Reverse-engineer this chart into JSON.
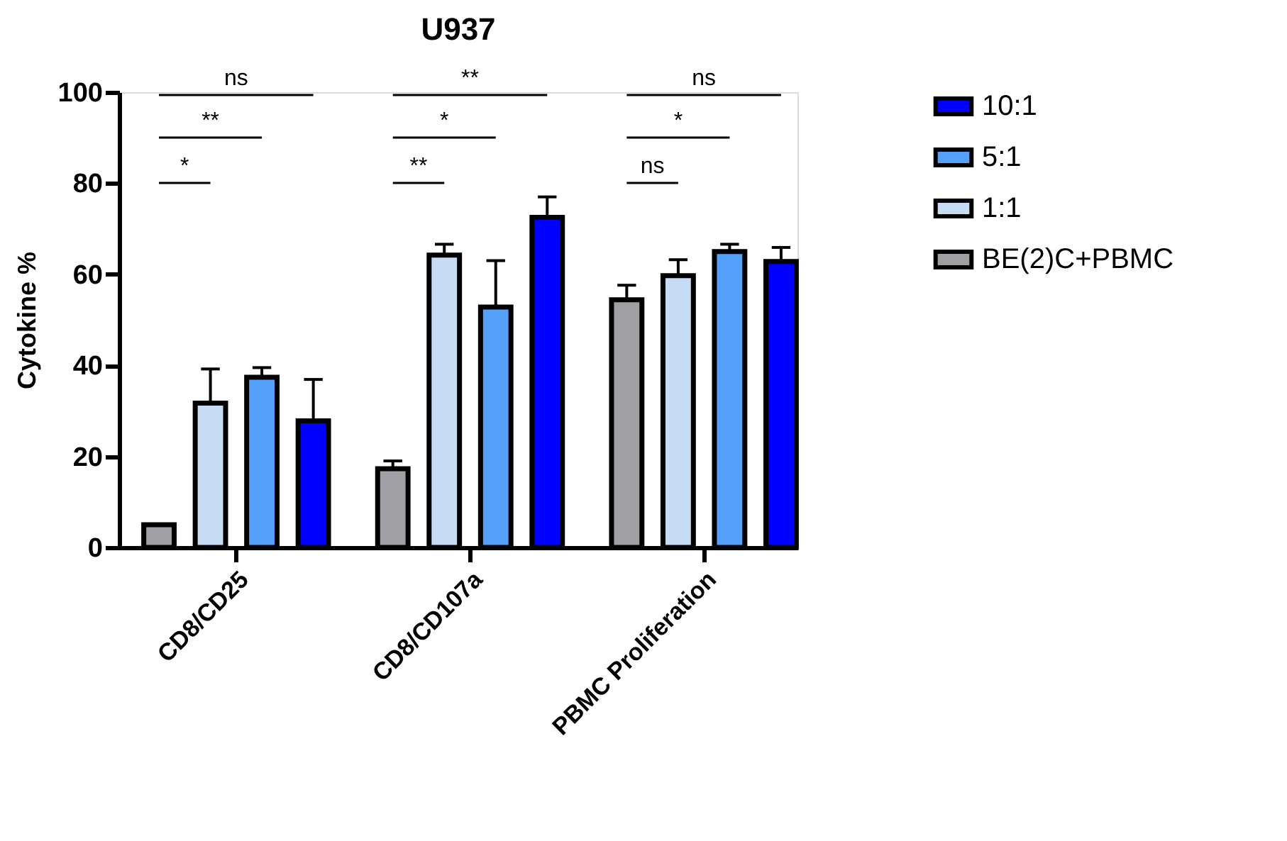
{
  "chart_data": {
    "type": "bar",
    "title": "U937",
    "ylabel": "Cytokine %",
    "categories": [
      "CD8/CD25",
      "CD8/CD107a",
      "PBMC Proliferation"
    ],
    "series": [
      {
        "name": "BE(2)C+PBMC",
        "color": "#a0a0a4",
        "values": [
          5,
          17.3,
          54.4
        ],
        "errors": [
          null,
          [
            17.3,
            19
          ],
          [
            54.4,
            57.6
          ]
        ]
      },
      {
        "name": "1:1",
        "color": "#c6dcf5",
        "values": [
          31.7,
          64.2,
          59.7
        ],
        "errors": [
          [
            31.7,
            39.2
          ],
          [
            64.2,
            66.6
          ],
          [
            59.7,
            63.2
          ]
        ]
      },
      {
        "name": "5:1",
        "color": "#55a0fb",
        "values": [
          37.4,
          52.8,
          65
        ],
        "errors": [
          [
            37.4,
            39.5
          ],
          [
            52.8,
            63
          ],
          [
            65,
            66.6
          ]
        ]
      },
      {
        "name": "10:1",
        "color": "#0000ff",
        "values": [
          27.8,
          72.5,
          62.8
        ],
        "errors": [
          [
            27.8,
            36.9
          ],
          [
            72.5,
            77
          ],
          [
            62.8,
            65.9
          ]
        ]
      }
    ],
    "ylim": [
      0,
      100
    ],
    "yticks": [
      0,
      20,
      40,
      60,
      80,
      100
    ],
    "grid": false,
    "legend": "right",
    "annotations": [
      "*",
      "**",
      "ns",
      "**",
      "*",
      "**",
      "ns",
      "*",
      "ns"
    ]
  }
}
